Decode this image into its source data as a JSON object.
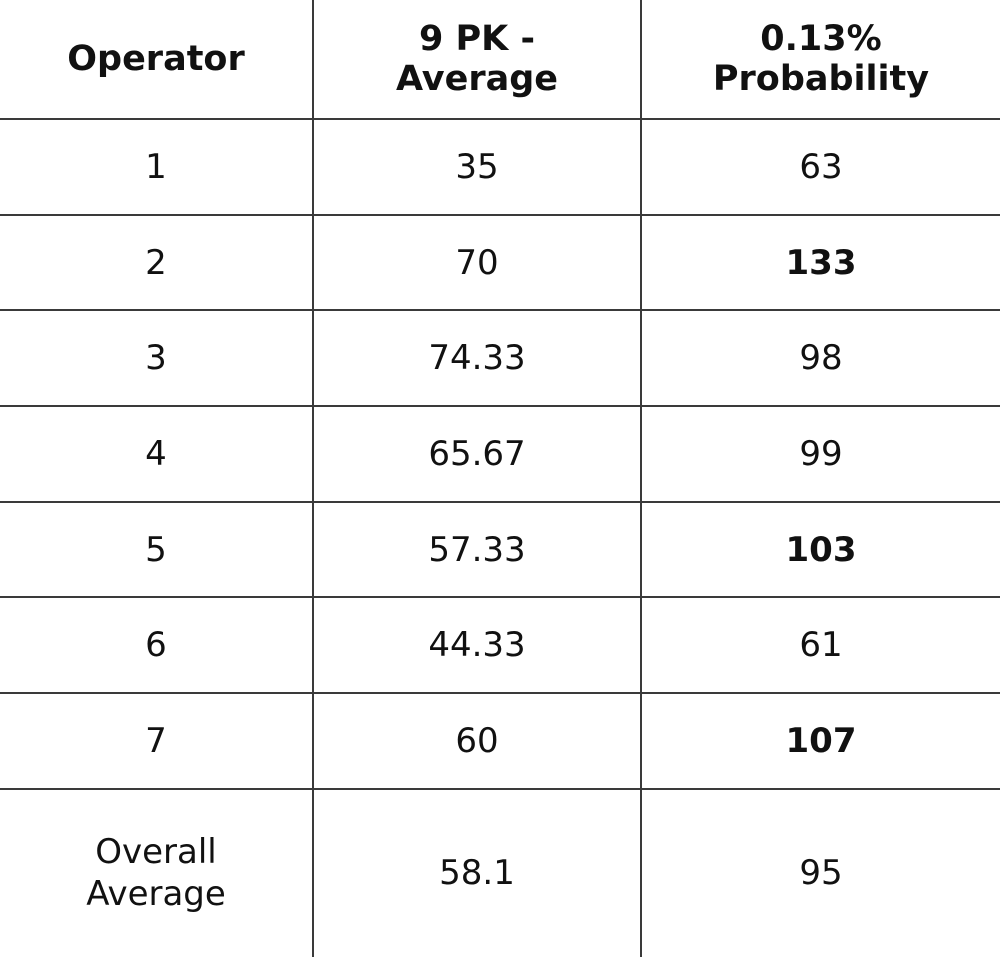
{
  "table": {
    "headers": [
      {
        "lines": [
          "Operator"
        ]
      },
      {
        "lines": [
          "9 PK -",
          "Average"
        ]
      },
      {
        "lines": [
          "0.13%",
          "Probability"
        ]
      }
    ],
    "rows": [
      {
        "operator": "1",
        "average": "35",
        "probability": "63",
        "probability_bold": false
      },
      {
        "operator": "2",
        "average": "70",
        "probability": "133",
        "probability_bold": true
      },
      {
        "operator": "3",
        "average": "74.33",
        "probability": "98",
        "probability_bold": false
      },
      {
        "operator": "4",
        "average": "65.67",
        "probability": "99",
        "probability_bold": false
      },
      {
        "operator": "5",
        "average": "57.33",
        "probability": "103",
        "probability_bold": true
      },
      {
        "operator": "6",
        "average": "44.33",
        "probability": "61",
        "probability_bold": false
      },
      {
        "operator": "7",
        "average": "60",
        "probability": "107",
        "probability_bold": true
      }
    ],
    "overall": {
      "label_lines": [
        "Overall",
        "Average"
      ],
      "average": "58.1",
      "probability": "95"
    }
  }
}
